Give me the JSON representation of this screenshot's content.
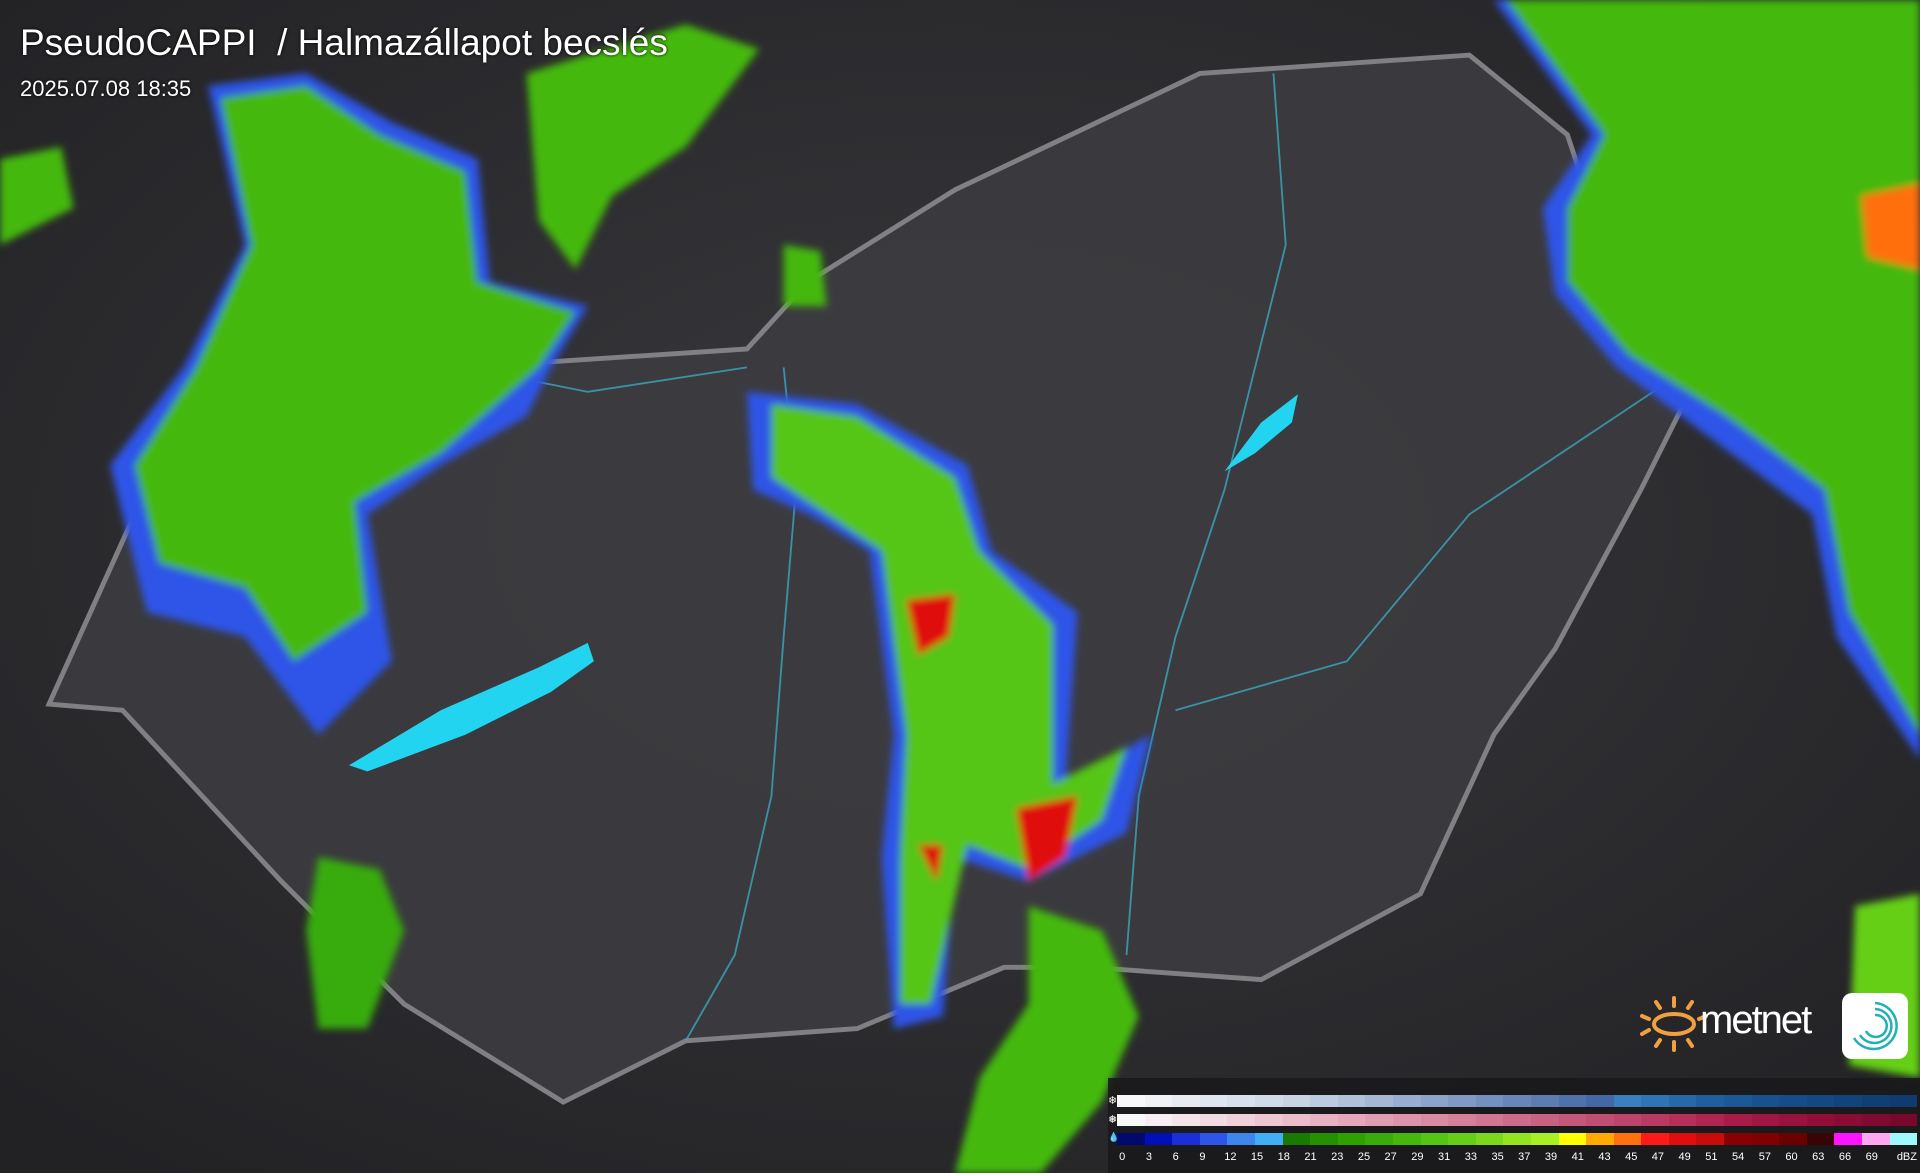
{
  "header": {
    "title": "PseudoCAPPI  / Halmazállapot becslés",
    "timestamp": "2025.07.08 18:35"
  },
  "logo": {
    "text": "metnet",
    "sun_color": "#f0a040",
    "app_icon_color": "#22b0b8"
  },
  "legend": {
    "rows": [
      {
        "icon": "snowflake-icon",
        "glyph": "❄",
        "colors": [
          "#f8f8fa",
          "#f0f2f6",
          "#e8ecf2",
          "#e0e6ef",
          "#d8e0eb",
          "#d0dae8",
          "#c8d4e4",
          "#bccbdf",
          "#b0c2da",
          "#a4b8d5",
          "#98aed0",
          "#8ca4ca",
          "#809ac4",
          "#7490be",
          "#6886b8",
          "#5c7cb2",
          "#5072ac",
          "#4468a6",
          "#3a80c0",
          "#2f74b4",
          "#2668a8",
          "#1f5f9e",
          "#1b5896",
          "#18528e",
          "#164d88",
          "#144882",
          "#12437c",
          "#103f76",
          "#0f3b70"
        ]
      },
      {
        "icon": "sleet-icon",
        "glyph": "❅",
        "colors": [
          "#f8f8fa",
          "#f6eef2",
          "#f4e4ea",
          "#f2dae2",
          "#f0d0da",
          "#eec6d2",
          "#ecbcca",
          "#e8b2c2",
          "#e4a8ba",
          "#e09eb2",
          "#dc94aa",
          "#d88aa2",
          "#d4809a",
          "#d07692",
          "#cc6c8a",
          "#c86282",
          "#c4587a",
          "#c04e72",
          "#bc446a",
          "#b83a62",
          "#b4305a",
          "#b02652",
          "#a81c4a",
          "#a01644",
          "#98123e",
          "#900e38",
          "#880c34",
          "#800a30",
          "#78082c"
        ]
      },
      {
        "icon": "raindrop-icon",
        "glyph": "💧",
        "colors": [
          "#000a6e",
          "#0010b8",
          "#1a2fd8",
          "#2e55e8",
          "#3f86ec",
          "#42aef5",
          "#1a7a00",
          "#259000",
          "#2ea000",
          "#39ab0a",
          "#45b80e",
          "#55c515",
          "#65cf18",
          "#7bd81d",
          "#94e422",
          "#a8ef26",
          "#ffff00",
          "#ffaa00",
          "#ff7010",
          "#ff1a1a",
          "#e00e0e",
          "#c80c0c",
          "#8a0000",
          "#800000",
          "#6a0000",
          "#3a0404",
          "#ff14ff",
          "#ffa8f0",
          "#a0f8ff"
        ]
      }
    ],
    "labels": [
      "0",
      "3",
      "6",
      "9",
      "12",
      "15",
      "18",
      "21",
      "23",
      "25",
      "27",
      "29",
      "31",
      "33",
      "35",
      "37",
      "39",
      "41",
      "43",
      "45",
      "47",
      "49",
      "51",
      "54",
      "57",
      "60",
      "63",
      "66",
      "69"
    ],
    "unit": "dBZ"
  }
}
